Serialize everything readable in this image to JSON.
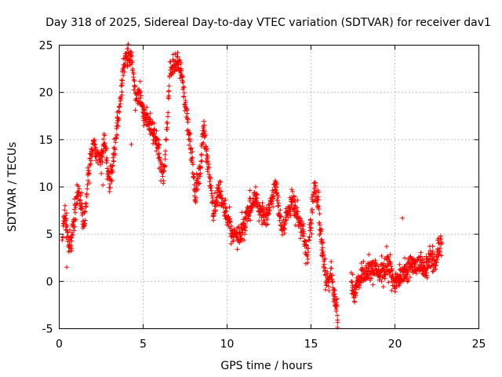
{
  "chart_data": {
    "type": "scatter",
    "title": "Day 318 of 2025, Sidereal Day-to-day VTEC variation (SDTVAR) for receiver dav1",
    "xlabel": "GPS time / hours",
    "ylabel": "SDTVAR / TECUs",
    "xlim": [
      0,
      25
    ],
    "ylim": [
      -5,
      25
    ],
    "xticks": [
      0,
      5,
      10,
      15,
      20,
      25
    ],
    "yticks": [
      -5,
      0,
      5,
      10,
      15,
      20,
      25
    ],
    "grid": true,
    "marker": "plus",
    "color": "#ff0000",
    "series": [
      {
        "name": "dav1",
        "trend": [
          [
            0.2,
            4.8
          ],
          [
            0.3,
            7.0
          ],
          [
            0.45,
            5.5
          ],
          [
            0.6,
            3.5
          ],
          [
            0.75,
            5.0
          ],
          [
            1.0,
            8.5
          ],
          [
            1.2,
            9.0
          ],
          [
            1.5,
            6.0
          ],
          [
            1.7,
            11.0
          ],
          [
            1.9,
            13.5
          ],
          [
            2.1,
            14.5
          ],
          [
            2.4,
            12.5
          ],
          [
            2.7,
            15.0
          ],
          [
            3.0,
            10.0
          ],
          [
            3.3,
            14.0
          ],
          [
            3.6,
            18.5
          ],
          [
            3.8,
            22.0
          ],
          [
            4.0,
            24.0
          ],
          [
            4.3,
            23.5
          ],
          [
            4.5,
            20.0
          ],
          [
            4.8,
            19.5
          ],
          [
            5.0,
            18.0
          ],
          [
            5.3,
            17.0
          ],
          [
            5.6,
            16.0
          ],
          [
            5.9,
            14.0
          ],
          [
            6.2,
            11.0
          ],
          [
            6.4,
            15.5
          ],
          [
            6.6,
            22.5
          ],
          [
            6.9,
            23.0
          ],
          [
            7.2,
            23.0
          ],
          [
            7.5,
            19.0
          ],
          [
            7.8,
            15.0
          ],
          [
            8.1,
            9.0
          ],
          [
            8.4,
            12.0
          ],
          [
            8.6,
            16.5
          ],
          [
            8.9,
            12.0
          ],
          [
            9.2,
            7.0
          ],
          [
            9.5,
            9.5
          ],
          [
            9.8,
            8.0
          ],
          [
            10.0,
            7.0
          ],
          [
            10.3,
            5.0
          ],
          [
            10.8,
            5.0
          ],
          [
            11.1,
            6.5
          ],
          [
            11.4,
            8.0
          ],
          [
            11.7,
            9.0
          ],
          [
            12.0,
            7.5
          ],
          [
            12.3,
            6.5
          ],
          [
            12.6,
            8.5
          ],
          [
            12.9,
            10.5
          ],
          [
            13.1,
            7.5
          ],
          [
            13.3,
            5.5
          ],
          [
            13.6,
            7.0
          ],
          [
            13.9,
            8.5
          ],
          [
            14.2,
            7.0
          ],
          [
            14.5,
            5.5
          ],
          [
            14.8,
            2.5
          ],
          [
            15.0,
            6.0
          ],
          [
            15.2,
            10.0
          ],
          [
            15.4,
            8.5
          ],
          [
            15.6,
            4.5
          ],
          [
            15.8,
            1.5
          ],
          [
            16.0,
            -0.5
          ],
          [
            16.2,
            1.5
          ],
          [
            16.4,
            -2.0
          ],
          [
            16.6,
            -3.5
          ],
          [
            17.4,
            -0.5
          ],
          [
            17.6,
            -1.5
          ],
          [
            17.9,
            0.5
          ],
          [
            18.3,
            1.0
          ],
          [
            18.8,
            1.5
          ],
          [
            19.3,
            1.0
          ],
          [
            19.6,
            2.0
          ],
          [
            20.0,
            -0.5
          ],
          [
            20.3,
            0.5
          ],
          [
            20.6,
            1.0
          ],
          [
            20.9,
            2.0
          ],
          [
            21.2,
            1.5
          ],
          [
            21.5,
            2.0
          ],
          [
            21.8,
            1.0
          ],
          [
            22.1,
            2.5
          ],
          [
            22.4,
            2.0
          ],
          [
            22.6,
            3.5
          ],
          [
            22.8,
            4.5
          ]
        ],
        "outliers": [
          [
            0.45,
            1.5
          ],
          [
            20.45,
            6.7
          ],
          [
            11.7,
            10.0
          ],
          [
            4.3,
            14.5
          ],
          [
            2.6,
            10.2
          ],
          [
            9.1,
            8.3
          ]
        ]
      }
    ]
  }
}
